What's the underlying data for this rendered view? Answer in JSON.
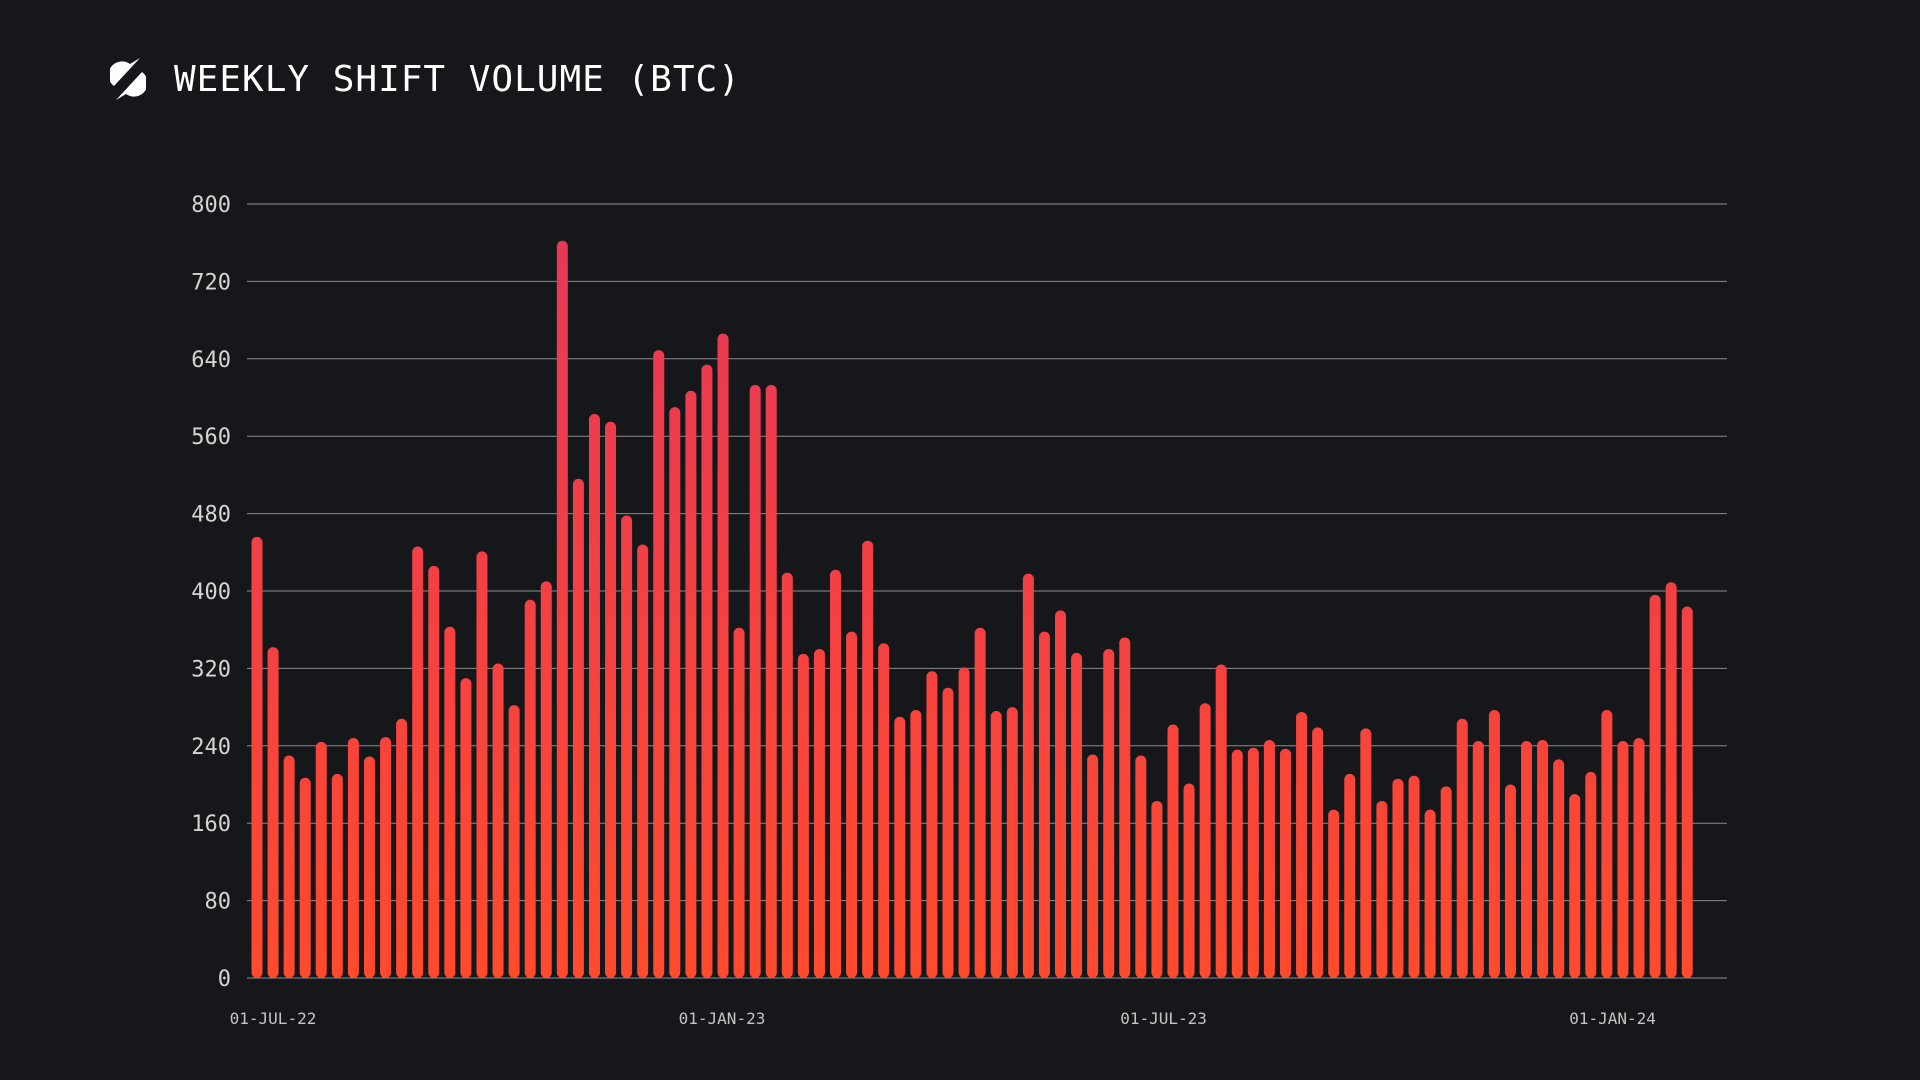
{
  "header": {
    "title": "WEEKLY SHIFT VOLUME (BTC)",
    "logo_icon": "sideshift-s-logo-icon"
  },
  "colors": {
    "background": "#16171a",
    "gridline": "#8c8c8c",
    "bar_top": "#e6375a",
    "bar_bottom": "#ff4a2e",
    "text": "#ffffff"
  },
  "chart_data": {
    "type": "bar",
    "title": "WEEKLY SHIFT VOLUME (BTC)",
    "xlabel": "",
    "ylabel": "",
    "ylim": [
      0,
      800
    ],
    "yticks": [
      0,
      80,
      160,
      240,
      320,
      400,
      480,
      560,
      640,
      720,
      800
    ],
    "grid": true,
    "x_start": "2022-07-01",
    "x_end": "2024-03-01",
    "x_tick_labels": [
      {
        "label": "01-JUL-22",
        "date": "2022-07-01"
      },
      {
        "label": "01-JAN-23",
        "date": "2023-01-01"
      },
      {
        "label": "01-JUL-23",
        "date": "2023-07-01"
      },
      {
        "label": "01-JAN-24",
        "date": "2024-01-01"
      }
    ],
    "series": [
      {
        "values": [
          456,
          342,
          230,
          207,
          244,
          211,
          248,
          229,
          249,
          268,
          446,
          426,
          363,
          310,
          441,
          325,
          282,
          391,
          410,
          762,
          516,
          583,
          575,
          478,
          448,
          649,
          590,
          607,
          634,
          666,
          362,
          613,
          613,
          419,
          335,
          340,
          422,
          358,
          452,
          346,
          270,
          277,
          317,
          300,
          321,
          362,
          276,
          280,
          418,
          358,
          380,
          336,
          231,
          340,
          352,
          230,
          183,
          262,
          201,
          284,
          324,
          236,
          238,
          246,
          237,
          275,
          259,
          174,
          211,
          258,
          183,
          206,
          209,
          174,
          198,
          268,
          245,
          277,
          200,
          245,
          246,
          226,
          190,
          213,
          277,
          245,
          248,
          396,
          409,
          384
        ]
      }
    ]
  }
}
